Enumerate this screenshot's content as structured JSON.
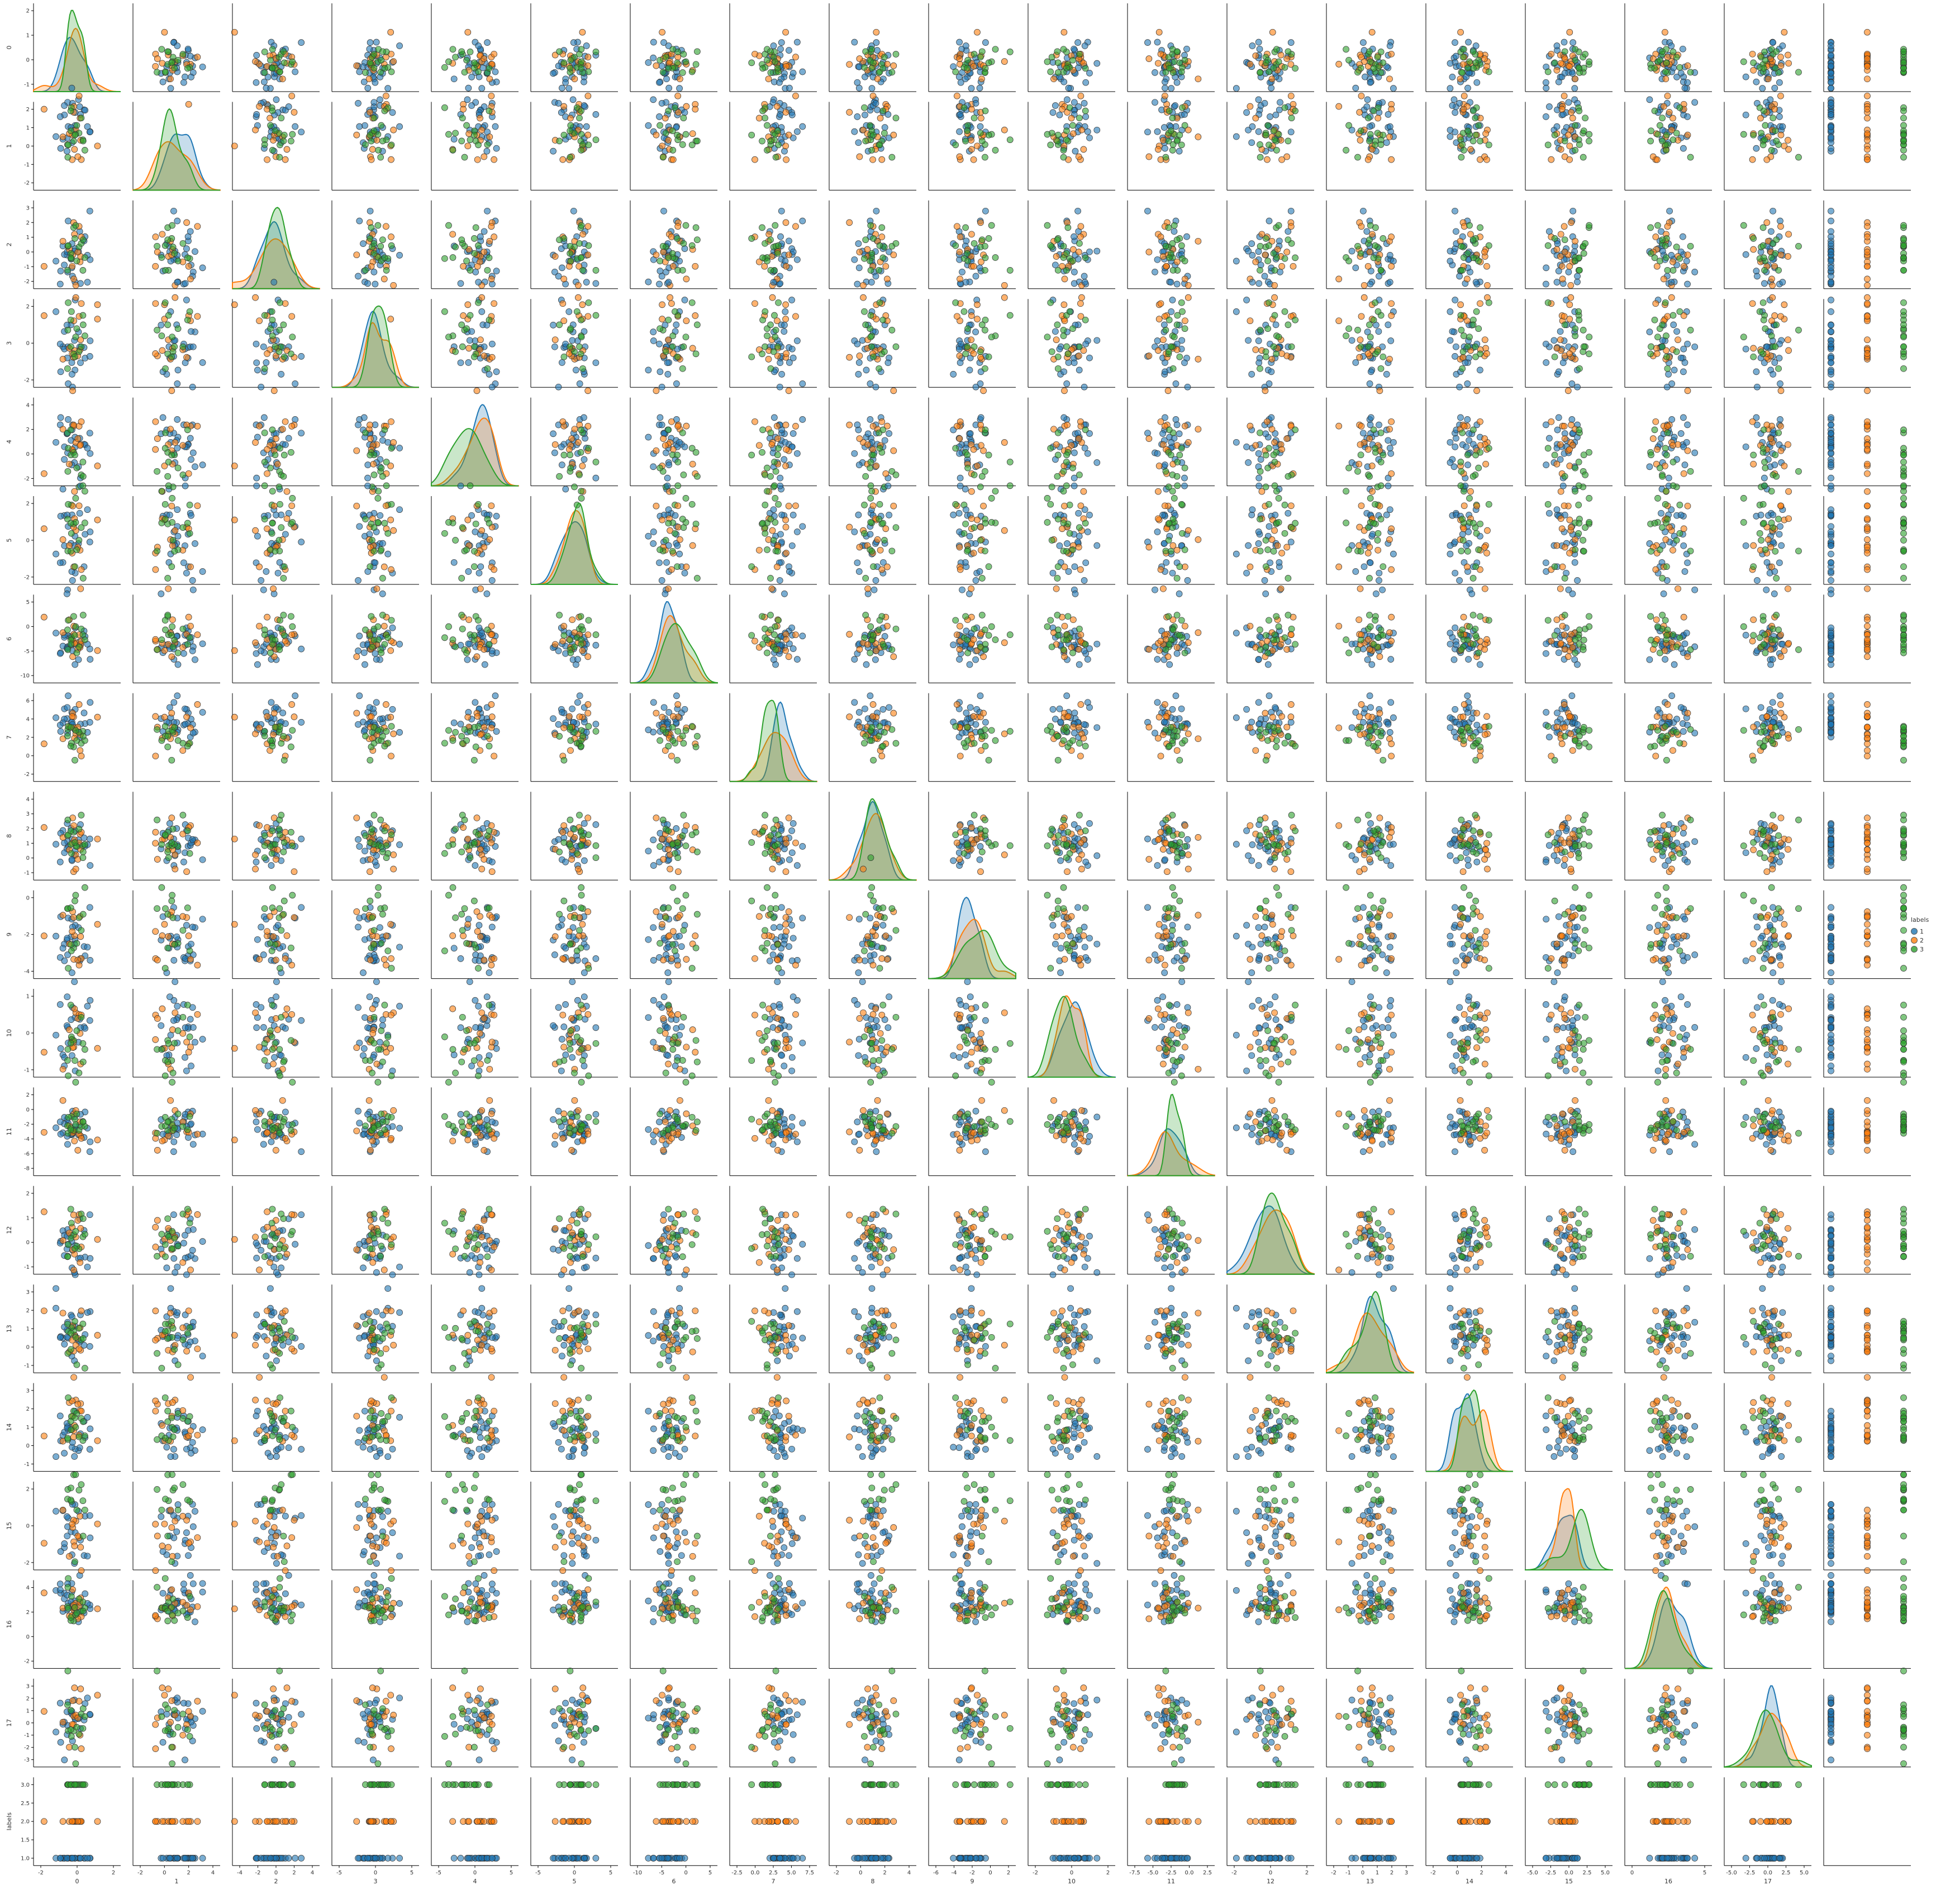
{
  "chart_data": {
    "type": "scatter",
    "title": "",
    "variables": [
      "0",
      "1",
      "2",
      "3",
      "4",
      "5",
      "6",
      "7",
      "8",
      "9",
      "10",
      "11",
      "12",
      "13",
      "14",
      "15",
      "16",
      "17",
      "labels"
    ],
    "x_ticks": [
      [
        "-2",
        "0",
        "2"
      ],
      [
        "-2",
        "0",
        "2",
        "4"
      ],
      [
        "-4",
        "-2",
        "0",
        "2",
        "4"
      ],
      [
        "-5",
        "0",
        "5"
      ],
      [
        "-5",
        "0",
        "5"
      ],
      [
        "-5",
        "0",
        "5"
      ],
      [
        "-10",
        "-5",
        "0",
        "5"
      ],
      [
        "-2.5",
        "0.0",
        "2.5",
        "5.0",
        "7.5"
      ],
      [
        "-2",
        "0",
        "2",
        "4"
      ],
      [
        "-6",
        "-4",
        "-2",
        "0",
        "2"
      ],
      [
        "-2",
        "0",
        "2"
      ],
      [
        "-7.5",
        "-5.0",
        "-2.5",
        "0.0",
        "2.5"
      ],
      [
        "-2",
        "0",
        "2"
      ],
      [
        "-2",
        "-1",
        "0",
        "1",
        "2",
        "3"
      ],
      [
        "-2",
        "0",
        "2",
        "4"
      ],
      [
        "-5.0",
        "-2.5",
        "0.0",
        "2.5",
        "5.0"
      ],
      [
        "0",
        "5"
      ],
      [
        "-5.0",
        "-2.5",
        "0.0",
        "2.5",
        "5.0"
      ],
      [
        "1.0",
        "1.5",
        "2.0",
        "2.5",
        "3.0"
      ]
    ],
    "y_ticks": [
      [
        "-1",
        "0",
        "1",
        "2"
      ],
      [
        "-2",
        "-1",
        "0",
        "1",
        "2"
      ],
      [
        "-2",
        "-1",
        "0",
        "1",
        "2",
        "3"
      ],
      [
        "-2",
        "0",
        "2"
      ],
      [
        "-2",
        "0",
        "2",
        "4"
      ],
      [
        "-2",
        "0",
        "2"
      ],
      [
        "-10",
        "-5",
        "0",
        "5"
      ],
      [
        "-2",
        "0",
        "2",
        "4",
        "6"
      ],
      [
        "-1",
        "0",
        "1",
        "2",
        "3",
        "4"
      ],
      [
        "-4",
        "-2",
        "0"
      ],
      [
        "-1",
        "0",
        "1"
      ],
      [
        "-8",
        "-6",
        "-4",
        "-2",
        "0",
        "2"
      ],
      [
        "-1",
        "0",
        "1",
        "2"
      ],
      [
        "-1",
        "0",
        "1",
        "2",
        "3"
      ],
      [
        "-1",
        "0",
        "1",
        "2",
        "3"
      ],
      [
        "-2",
        "0",
        "2"
      ],
      [
        "-2",
        "0",
        "2",
        "4"
      ],
      [
        "-3",
        "-2",
        "-1",
        "0",
        "1",
        "2",
        "3"
      ],
      [
        "1.0",
        "1.5",
        "2.0",
        "2.5",
        "3.0"
      ]
    ],
    "series": [
      {
        "name": "1",
        "color": "#1f77b4"
      },
      {
        "name": "2",
        "color": "#ff7f0e"
      },
      {
        "name": "3",
        "color": "#2ca02c"
      }
    ],
    "n_points_per_class": [
      25,
      15,
      15
    ],
    "legend_title": "labels",
    "legend_position": "right",
    "diagonal": "kde",
    "offdiagonal": "scatter",
    "grid": false
  }
}
